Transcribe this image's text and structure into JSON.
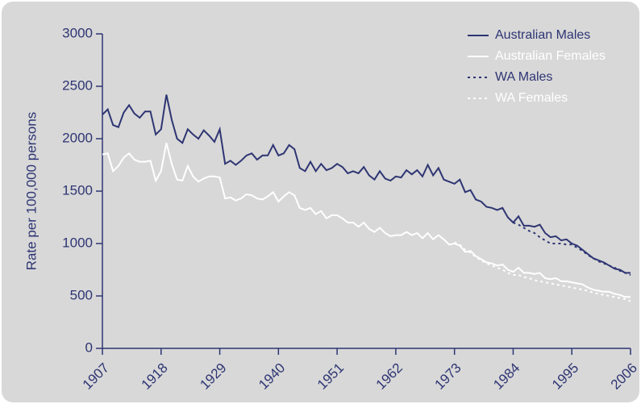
{
  "chart_data": {
    "type": "line",
    "y_label": "Rate per 100,000 persons",
    "x": [
      1907,
      1908,
      1909,
      1910,
      1911,
      1912,
      1913,
      1914,
      1915,
      1916,
      1917,
      1918,
      1919,
      1920,
      1921,
      1922,
      1923,
      1924,
      1925,
      1926,
      1927,
      1928,
      1929,
      1930,
      1931,
      1932,
      1933,
      1934,
      1935,
      1936,
      1937,
      1938,
      1939,
      1940,
      1941,
      1942,
      1943,
      1944,
      1945,
      1946,
      1947,
      1948,
      1949,
      1950,
      1951,
      1952,
      1953,
      1954,
      1955,
      1956,
      1957,
      1958,
      1959,
      1960,
      1961,
      1962,
      1963,
      1964,
      1965,
      1966,
      1967,
      1968,
      1969,
      1970,
      1971,
      1972,
      1973,
      1974,
      1975,
      1976,
      1977,
      1978,
      1979,
      1980,
      1981,
      1982,
      1983,
      1984,
      1985,
      1986,
      1987,
      1988,
      1989,
      1990,
      1991,
      1992,
      1993,
      1994,
      1995,
      1996,
      1997,
      1998,
      1999,
      2000,
      2001,
      2002,
      2003,
      2004,
      2005,
      2006
    ],
    "series": [
      {
        "name": "Australian Males",
        "color": "#2e3573",
        "style": "solid",
        "values": [
          2230,
          2280,
          2130,
          2110,
          2250,
          2320,
          2240,
          2200,
          2260,
          2260,
          2040,
          2090,
          2420,
          2180,
          2000,
          1960,
          2090,
          2040,
          2000,
          2080,
          2030,
          1970,
          2090,
          1760,
          1790,
          1750,
          1790,
          1840,
          1860,
          1800,
          1840,
          1840,
          1940,
          1840,
          1860,
          1940,
          1900,
          1720,
          1690,
          1780,
          1690,
          1760,
          1700,
          1720,
          1760,
          1730,
          1670,
          1690,
          1670,
          1730,
          1650,
          1610,
          1690,
          1620,
          1600,
          1640,
          1630,
          1700,
          1660,
          1700,
          1640,
          1750,
          1650,
          1720,
          1610,
          1590,
          1570,
          1610,
          1490,
          1510,
          1420,
          1400,
          1350,
          1340,
          1320,
          1340,
          1250,
          1200,
          1260,
          1170,
          1170,
          1160,
          1180,
          1100,
          1060,
          1070,
          1030,
          1040,
          1000,
          980,
          940,
          900,
          860,
          840,
          820,
          790,
          760,
          750,
          720,
          720
        ]
      },
      {
        "name": "Australian Females",
        "color": "#ffffff",
        "style": "solid",
        "values": [
          1850,
          1860,
          1690,
          1740,
          1820,
          1860,
          1800,
          1780,
          1780,
          1790,
          1600,
          1690,
          1960,
          1760,
          1610,
          1600,
          1740,
          1640,
          1590,
          1620,
          1640,
          1640,
          1630,
          1430,
          1440,
          1410,
          1430,
          1470,
          1460,
          1430,
          1420,
          1450,
          1490,
          1400,
          1450,
          1490,
          1460,
          1340,
          1320,
          1340,
          1280,
          1310,
          1240,
          1270,
          1270,
          1240,
          1200,
          1200,
          1160,
          1200,
          1140,
          1110,
          1150,
          1100,
          1070,
          1080,
          1080,
          1110,
          1080,
          1100,
          1050,
          1100,
          1040,
          1080,
          1040,
          990,
          1000,
          980,
          920,
          930,
          880,
          850,
          820,
          810,
          790,
          800,
          750,
          730,
          770,
          720,
          720,
          710,
          720,
          670,
          660,
          670,
          640,
          640,
          630,
          620,
          610,
          580,
          560,
          550,
          540,
          540,
          520,
          510,
          490,
          490
        ]
      },
      {
        "name": "WA Males",
        "color": "#2e3573",
        "style": "dotted",
        "values": [
          null,
          null,
          null,
          null,
          null,
          null,
          null,
          null,
          null,
          null,
          null,
          null,
          null,
          null,
          null,
          null,
          null,
          null,
          null,
          null,
          null,
          null,
          null,
          null,
          null,
          null,
          null,
          null,
          null,
          null,
          null,
          null,
          null,
          null,
          null,
          null,
          null,
          null,
          null,
          null,
          null,
          null,
          null,
          null,
          null,
          null,
          null,
          null,
          null,
          null,
          null,
          null,
          null,
          null,
          null,
          null,
          null,
          null,
          null,
          null,
          null,
          null,
          null,
          null,
          null,
          null,
          null,
          null,
          null,
          null,
          null,
          null,
          null,
          null,
          null,
          null,
          null,
          1200,
          1180,
          1150,
          1120,
          1100,
          1060,
          1030,
          1000,
          1000,
          1000,
          990,
          990,
          960,
          930,
          890,
          860,
          830,
          810,
          790,
          770,
          740,
          720,
          700
        ]
      },
      {
        "name": "WA Females",
        "color": "#ffffff",
        "style": "dotted",
        "values": [
          null,
          null,
          null,
          null,
          null,
          null,
          null,
          null,
          null,
          null,
          null,
          null,
          null,
          null,
          null,
          null,
          null,
          null,
          null,
          null,
          null,
          null,
          null,
          null,
          null,
          null,
          null,
          null,
          null,
          null,
          null,
          null,
          null,
          null,
          null,
          null,
          null,
          null,
          null,
          null,
          null,
          null,
          null,
          null,
          null,
          null,
          null,
          null,
          null,
          null,
          null,
          null,
          null,
          null,
          null,
          null,
          null,
          null,
          null,
          null,
          null,
          null,
          null,
          null,
          null,
          null,
          1010,
          990,
          940,
          910,
          870,
          840,
          810,
          790,
          770,
          750,
          720,
          700,
          700,
          680,
          670,
          650,
          640,
          630,
          620,
          610,
          600,
          590,
          580,
          570,
          560,
          550,
          530,
          520,
          510,
          500,
          490,
          480,
          470,
          450
        ]
      }
    ],
    "xlim": [
      1907,
      2006
    ],
    "xticks": [
      1907,
      1918,
      1929,
      1940,
      1951,
      1962,
      1973,
      1984,
      1995,
      2006
    ],
    "ylim": [
      0,
      3000
    ],
    "yticks": [
      0,
      500,
      1000,
      1500,
      2000,
      2500,
      3000
    ],
    "legend": "top-right",
    "grid": false
  }
}
